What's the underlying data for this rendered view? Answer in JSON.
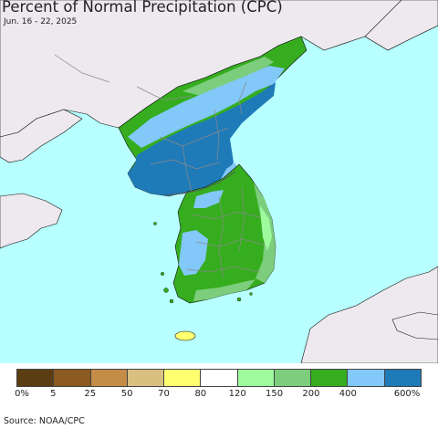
{
  "header": {
    "title": "Percent of Normal Precipitation (CPC)",
    "date_range": "Jun. 16 - 22, 2025"
  },
  "map": {
    "colors": {
      "ocean": "#b8ffff",
      "land_outside": "#ede9ee",
      "border": "#8a8a8a",
      "coast": "#111111"
    }
  },
  "legend": {
    "colors": [
      "#5a3e12",
      "#8b5a20",
      "#c58c48",
      "#d8c080",
      "#ffff70",
      "#ffffff",
      "#9dfa9d",
      "#7ccd7c",
      "#35ad1f",
      "#82c8f8",
      "#1f7ab8"
    ],
    "labels": [
      "0%",
      "5",
      "25",
      "50",
      "70",
      "80",
      "120",
      "150",
      "200",
      "400",
      "600%"
    ]
  },
  "footer": {
    "source": "Source: NOAA/CPC"
  }
}
